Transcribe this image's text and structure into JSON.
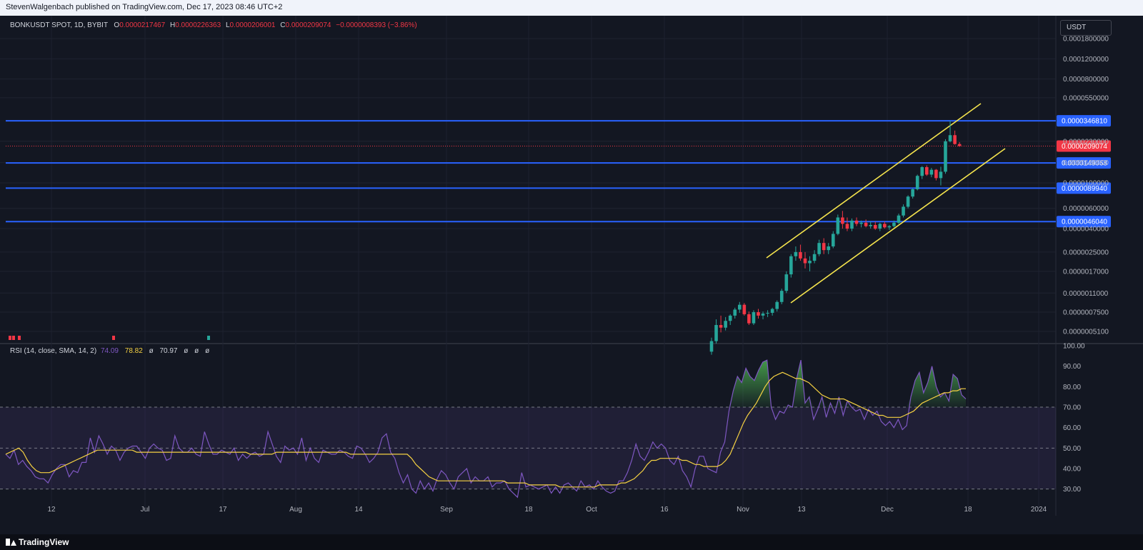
{
  "publisher_line": "StevenWalgenbach published on TradingView.com, Dec 17, 2023 08:46 UTC+2",
  "brand": "TradingView",
  "currency_button": "USDT",
  "symbol_info": "BONKUSDT SPOT, 1D, BYBIT",
  "ohlc": {
    "o_label": "O",
    "o": "0.0000217467",
    "h_label": "H",
    "h": "0.0000226363",
    "l_label": "L",
    "l": "0.0000206001",
    "c_label": "C",
    "c": "0.0000209074",
    "change": "−0.0000008393 (−3.86%)"
  },
  "rsi_legend": {
    "name": "RSI (14, close, SMA, 14, 2)",
    "rsi": "74.09",
    "sma": "78.82",
    "na1": "ø",
    "bb": "70.97",
    "na2": "ø",
    "na3": "ø",
    "na4": "ø"
  },
  "colors": {
    "background": "#131722",
    "level_line": "#2962ff",
    "channel": "#f5e44d",
    "bull": "#26a69a",
    "bear": "#f23645",
    "rsi": "#7e57c2",
    "rsi_ma": "#f5d142"
  },
  "chart_data": [
    {
      "type": "candlestick",
      "scale": "log",
      "price_axis_labels": [
        "0.0001800000",
        "0.0001200000",
        "0.0000800000",
        "0.0000550000",
        "0.0000230000",
        "0.0000150000",
        "0.0000100000",
        "0.0000060000",
        "0.0000040000",
        "0.0000025000",
        "0.0000017000",
        "0.0000011000",
        "0.0000007500",
        "0.0000005100"
      ],
      "horizontal_levels": [
        "0.0000346810",
        "0.0000149068",
        "0.0000089940",
        "0.0000046040"
      ],
      "last_price": "0.0000209074",
      "x_axis_labels": [
        "12",
        "Jul",
        "17",
        "Aug",
        "14",
        "Sep",
        "18",
        "Oct",
        "16",
        "Nov",
        "13",
        "Dec",
        "18",
        "2024"
      ],
      "candles": [
        [
          3.4e-07,
          4.5e-07,
          3.2e-07,
          4.2e-07
        ],
        [
          4.2e-07,
          6.5e-07,
          4e-07,
          5.8e-07
        ],
        [
          5.8e-07,
          7e-07,
          5e-07,
          5.5e-07
        ],
        [
          5.5e-07,
          6.8e-07,
          5.2e-07,
          6.3e-07
        ],
        [
          6.3e-07,
          7.2e-07,
          5.8e-07,
          7e-07
        ],
        [
          7e-07,
          8.2e-07,
          6.6e-07,
          7.9e-07
        ],
        [
          7.9e-07,
          9.2e-07,
          7.4e-07,
          8.7e-07
        ],
        [
          8.7e-07,
          9e-07,
          7e-07,
          7.2e-07
        ],
        [
          7.2e-07,
          7.6e-07,
          5.8e-07,
          6e-07
        ],
        [
          6e-07,
          7.8e-07,
          5.8e-07,
          7.5e-07
        ],
        [
          7.5e-07,
          8e-07,
          6.6e-07,
          7e-07
        ],
        [
          7e-07,
          7.6e-07,
          6.5e-07,
          7.3e-07
        ],
        [
          7.3e-07,
          7.8e-07,
          6.8e-07,
          7.4e-07
        ],
        [
          7.4e-07,
          8.2e-07,
          7e-07,
          8e-07
        ],
        [
          8e-07,
          9.5e-07,
          7.6e-07,
          9.2e-07
        ],
        [
          9.2e-07,
          1.2e-06,
          8.8e-07,
          1.15e-06
        ],
        [
          1.15e-06,
          1.7e-06,
          1.1e-06,
          1.6e-06
        ],
        [
          1.6e-06,
          2.4e-06,
          1.5e-06,
          2.3e-06
        ],
        [
          2.3e-06,
          2.8e-06,
          2.1e-06,
          2.5e-06
        ],
        [
          2.5e-06,
          2.9e-06,
          2.1e-06,
          2.2e-06
        ],
        [
          2.2e-06,
          2.5e-06,
          1.8e-06,
          2e-06
        ],
        [
          2e-06,
          2.3e-06,
          1.7e-06,
          2.1e-06
        ],
        [
          2.1e-06,
          2.6e-06,
          2e-06,
          2.4e-06
        ],
        [
          2.4e-06,
          3.2e-06,
          2.3e-06,
          3e-06
        ],
        [
          3e-06,
          3.3e-06,
          2.4e-06,
          2.6e-06
        ],
        [
          2.6e-06,
          3e-06,
          2.4e-06,
          2.8e-06
        ],
        [
          2.8e-06,
          3.8e-06,
          2.7e-06,
          3.6e-06
        ],
        [
          3.6e-06,
          5.3e-06,
          3.5e-06,
          5e-06
        ],
        [
          5e-06,
          5.7e-06,
          4e-06,
          4.4e-06
        ],
        [
          4.4e-06,
          5e-06,
          3.8e-06,
          4e-06
        ],
        [
          4e-06,
          4.9e-06,
          3.8e-06,
          4.7e-06
        ],
        [
          4.7e-06,
          5e-06,
          4.2e-06,
          4.4e-06
        ],
        [
          4.4e-06,
          4.7e-06,
          4.1e-06,
          4.5e-06
        ],
        [
          4.5e-06,
          4.8e-06,
          4.1e-06,
          4.2e-06
        ],
        [
          4.2e-06,
          4.6e-06,
          4e-06,
          4.3e-06
        ],
        [
          4.3e-06,
          4.6e-06,
          3.9e-06,
          4e-06
        ],
        [
          4e-06,
          4.5e-06,
          3.8e-06,
          4.4e-06
        ],
        [
          4.4e-06,
          4.6e-06,
          4e-06,
          4.1e-06
        ],
        [
          4.1e-06,
          4.3e-06,
          3.9e-06,
          4.2e-06
        ],
        [
          4.2e-06,
          4.7e-06,
          4.1e-06,
          4.5e-06
        ],
        [
          4.5e-06,
          5.4e-06,
          4.4e-06,
          5.2e-06
        ],
        [
          5.2e-06,
          6.5e-06,
          5e-06,
          6.2e-06
        ],
        [
          6.2e-06,
          7.8e-06,
          6e-06,
          7.6e-06
        ],
        [
          7.6e-06,
          9e-06,
          7.3e-06,
          8.8e-06
        ],
        [
          8.8e-06,
          1.18e-05,
          8.6e-06,
          1.15e-05
        ],
        [
          1.15e-05,
          1.4e-05,
          1.08e-05,
          1.37e-05
        ],
        [
          1.37e-05,
          1.42e-05,
          1.15e-05,
          1.18e-05
        ],
        [
          1.18e-05,
          1.35e-05,
          1.12e-05,
          1.3e-05
        ],
        [
          1.3e-05,
          1.32e-05,
          1.05e-05,
          1.1e-05
        ],
        [
          1.1e-05,
          1.38e-05,
          9.5e-06,
          1.25e-05
        ],
        [
          1.25e-05,
          2.4e-05,
          1.2e-05,
          2.3e-05
        ],
        [
          2.3e-05,
          3.468e-05,
          2.25e-05,
          2.6e-05
        ],
        [
          2.6e-05,
          2.85e-05,
          2.15e-05,
          2.175e-05
        ],
        [
          2.175e-05,
          2.264e-05,
          2.06e-05,
          2.091e-05
        ]
      ]
    },
    {
      "type": "line",
      "name": "RSI (14, close, SMA, 14, 2)",
      "ylim": [
        25,
        100
      ],
      "axis_labels": [
        "100.00",
        "90.00",
        "80.00",
        "70.00",
        "60.00",
        "50.00",
        "40.00",
        "30.00"
      ],
      "bands": [
        70,
        50,
        30
      ],
      "rsi": [
        47,
        45,
        49,
        42,
        44,
        41,
        39,
        36,
        35,
        35,
        33,
        37,
        40,
        42,
        42,
        36,
        39,
        38,
        43,
        43,
        55,
        48,
        56,
        52,
        47,
        51,
        49,
        44,
        48,
        50,
        51,
        51,
        48,
        45,
        50,
        52,
        50,
        49,
        44,
        45,
        56,
        50,
        48,
        48,
        50,
        47,
        46,
        58,
        52,
        47,
        47,
        49,
        48,
        47,
        50,
        44,
        47,
        45,
        47,
        48,
        46,
        47,
        58,
        52,
        46,
        43,
        51,
        49,
        50,
        47,
        55,
        44,
        50,
        45,
        43,
        49,
        48,
        47,
        47,
        49,
        48,
        46,
        45,
        51,
        50,
        47,
        43,
        45,
        48,
        55,
        57,
        48,
        45,
        38,
        33,
        37,
        30,
        28,
        34,
        30,
        33,
        29,
        35,
        39,
        37,
        33,
        30,
        36,
        38,
        40,
        33,
        36,
        34,
        34,
        36,
        31,
        33,
        33,
        34,
        30,
        28,
        26,
        38,
        31,
        32,
        31,
        30,
        31,
        32,
        28,
        31,
        28,
        32,
        33,
        31,
        29,
        34,
        31,
        32,
        30,
        34,
        31,
        29,
        28,
        29,
        34,
        34,
        38,
        44,
        52,
        46,
        44,
        48,
        53,
        50,
        52,
        50,
        44,
        42,
        46,
        39,
        36,
        31,
        40,
        46,
        46,
        40,
        39,
        38,
        48,
        53,
        68,
        78,
        85,
        82,
        89,
        85,
        83,
        88,
        92,
        93,
        70,
        64,
        68,
        67,
        71,
        70,
        84,
        93,
        72,
        75,
        64,
        69,
        75,
        65,
        72,
        67,
        75,
        66,
        73,
        70,
        68,
        69,
        64,
        69,
        66,
        68,
        63,
        61,
        63,
        60,
        64,
        59,
        61,
        75,
        83,
        87,
        77,
        82,
        90,
        80,
        75,
        77,
        73,
        86,
        84,
        76,
        74
      ],
      "rsi_ma": [
        47,
        48,
        49,
        50,
        48,
        44,
        41,
        39,
        38,
        38,
        38,
        39,
        40,
        41,
        42,
        43,
        44,
        45,
        46,
        47,
        48,
        49,
        49,
        49,
        49,
        49,
        49,
        49,
        49,
        49,
        48,
        48,
        48,
        48,
        48,
        48,
        48,
        48,
        48,
        48,
        48,
        48,
        48,
        48,
        48,
        48,
        48,
        48,
        48,
        48,
        48,
        48,
        48,
        48,
        48,
        48,
        47,
        47,
        47,
        47,
        47,
        47,
        48,
        48,
        48,
        48,
        48,
        48,
        48,
        48,
        48,
        48,
        48,
        48,
        48,
        48,
        48,
        48,
        48,
        47,
        47,
        47,
        47,
        47,
        47,
        47,
        47,
        47,
        47,
        47,
        47,
        47,
        47,
        45,
        42,
        40,
        38,
        36,
        35,
        34,
        34,
        34,
        34,
        34,
        34,
        34,
        34,
        34,
        34,
        34,
        34,
        34,
        34,
        34,
        34,
        33,
        33,
        33,
        33,
        33,
        32,
        32,
        32,
        32,
        32,
        32,
        32,
        31,
        31,
        31,
        31,
        31,
        31,
        31,
        31,
        31,
        32,
        32,
        32,
        32,
        32,
        33,
        33,
        34,
        35,
        37,
        39,
        42,
        44,
        44,
        45,
        45,
        45,
        45,
        45,
        44,
        44,
        43,
        42,
        42,
        41,
        41,
        41,
        41,
        42,
        44,
        47,
        52,
        57,
        62,
        66,
        69,
        72,
        76,
        80,
        83,
        85,
        86,
        87,
        86,
        85,
        84,
        84,
        83,
        82,
        80,
        78,
        76,
        75,
        74,
        74,
        74,
        74,
        73,
        72,
        71,
        70,
        69,
        68,
        67,
        66,
        66,
        65,
        65,
        65,
        65,
        66,
        67,
        68,
        70,
        72,
        73,
        74,
        75,
        76,
        77,
        77,
        78,
        78,
        79,
        79
      ]
    }
  ]
}
